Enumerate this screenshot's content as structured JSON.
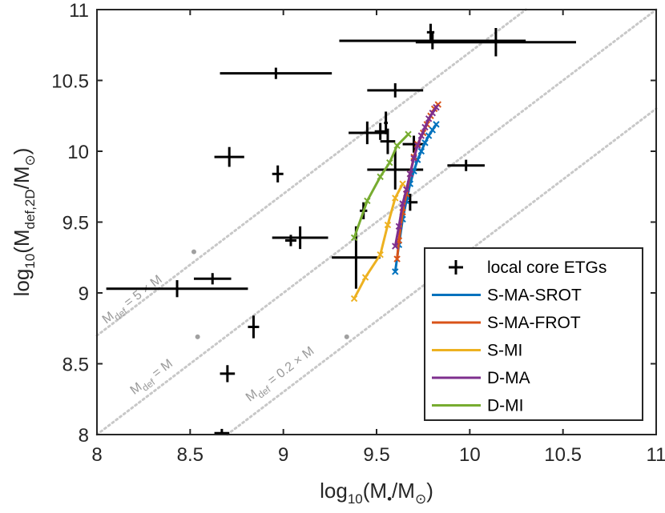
{
  "chart_data": {
    "type": "scatter",
    "xlim": [
      8,
      11
    ],
    "ylim": [
      8,
      11
    ],
    "xticks": [
      8,
      8.5,
      9,
      9.5,
      10,
      10.5,
      11
    ],
    "xtick_labels": [
      "8",
      "8.5",
      "9",
      "9.5",
      "10",
      "10.5",
      "11"
    ],
    "yticks": [
      8,
      8.5,
      9,
      9.5,
      10,
      10.5,
      11
    ],
    "ytick_labels": [
      "8",
      "8.5",
      "9",
      "9.5",
      "10",
      "10.5",
      "11"
    ],
    "xlabel": {
      "pre": "log",
      "sub1": "10",
      "mid": "(M",
      "sub2": "•",
      "post": "/M",
      "sun": "⊙",
      "end": ")"
    },
    "ylabel": {
      "pre": "log",
      "sub1": "10",
      "mid": "(M",
      "sub2": "def,2D",
      "post": "/M",
      "sun": "⊙",
      "end": ")"
    },
    "grid": false,
    "legend_position": "bottom-right",
    "reference_lines": [
      {
        "name": "5x",
        "offset": 0.69897,
        "color": "#c8c8c8",
        "label": {
          "m": "M",
          "sub": "def",
          "text": " = 5 × M",
          "x": 8.05,
          "y": 8.78
        }
      },
      {
        "name": "1x",
        "offset": 0.0,
        "color": "#c8c8c8",
        "label": {
          "m": "M",
          "sub": "def",
          "text": " = M",
          "x": 8.2,
          "y": 8.28
        }
      },
      {
        "name": "0.2x",
        "offset": -0.69897,
        "color": "#c8c8c8",
        "label": {
          "m": "M",
          "sub": "def",
          "text": " = 0.2 × M",
          "x": 8.82,
          "y": 8.23
        }
      }
    ],
    "reference_dots": [
      {
        "x": 8.52,
        "y": 9.29
      },
      {
        "x": 8.54,
        "y": 8.69
      },
      {
        "x": 9.34,
        "y": 8.69
      }
    ],
    "observations": {
      "name": "local core ETGs",
      "points": [
        {
          "x": 9.8,
          "y": 10.78,
          "xerr": 0.5,
          "yerr": 0.06
        },
        {
          "x": 10.14,
          "y": 10.77,
          "xerr": 0.43,
          "yerr": 0.1
        },
        {
          "x": 9.79,
          "y": 10.84,
          "xerr": 0.02,
          "yerr": 0.06
        },
        {
          "x": 8.96,
          "y": 10.55,
          "xerr": 0.3,
          "yerr": 0.04
        },
        {
          "x": 9.6,
          "y": 10.43,
          "xerr": 0.15,
          "yerr": 0.05
        },
        {
          "x": 9.55,
          "y": 10.2,
          "xerr": 0.01,
          "yerr": 0.08
        },
        {
          "x": 9.45,
          "y": 10.13,
          "xerr": 0.1,
          "yerr": 0.08
        },
        {
          "x": 9.52,
          "y": 10.14,
          "xerr": 0.03,
          "yerr": 0.06
        },
        {
          "x": 9.56,
          "y": 10.07,
          "xerr": 0.04,
          "yerr": 0.09
        },
        {
          "x": 9.7,
          "y": 10.05,
          "xerr": 0.06,
          "yerr": 0.06
        },
        {
          "x": 9.6,
          "y": 9.87,
          "xerr": 0.15,
          "yerr": 0.14
        },
        {
          "x": 9.98,
          "y": 9.9,
          "xerr": 0.1,
          "yerr": 0.04
        },
        {
          "x": 8.71,
          "y": 9.96,
          "xerr": 0.08,
          "yerr": 0.07
        },
        {
          "x": 8.97,
          "y": 9.84,
          "xerr": 0.03,
          "yerr": 0.06
        },
        {
          "x": 9.68,
          "y": 9.64,
          "xerr": 0.04,
          "yerr": 0.06
        },
        {
          "x": 9.43,
          "y": 9.58,
          "xerr": 0.02,
          "yerr": 0.06
        },
        {
          "x": 9.09,
          "y": 9.39,
          "xerr": 0.15,
          "yerr": 0.08
        },
        {
          "x": 9.04,
          "y": 9.37,
          "xerr": 0.03,
          "yerr": 0.04
        },
        {
          "x": 9.39,
          "y": 9.25,
          "xerr": 0.13,
          "yerr": 0.22
        },
        {
          "x": 8.62,
          "y": 9.1,
          "xerr": 0.1,
          "yerr": 0.04
        },
        {
          "x": 8.43,
          "y": 9.03,
          "xerr": 0.38,
          "yerr": 0.06
        },
        {
          "x": 8.84,
          "y": 8.76,
          "xerr": 0.03,
          "yerr": 0.08
        },
        {
          "x": 8.7,
          "y": 8.43,
          "xerr": 0.04,
          "yerr": 0.06
        },
        {
          "x": 8.67,
          "y": 8.01,
          "xerr": 0.04,
          "yerr": 0.03
        }
      ]
    },
    "series": [
      {
        "name": "S-MA-SROT",
        "color": "#0072BD",
        "x": [
          9.6,
          9.62,
          9.64,
          9.66,
          9.68,
          9.7,
          9.72,
          9.74,
          9.76,
          9.78,
          9.8,
          9.82
        ],
        "y": [
          9.15,
          9.34,
          9.52,
          9.65,
          9.77,
          9.86,
          9.94,
          10.0,
          10.06,
          10.11,
          10.15,
          10.19
        ]
      },
      {
        "name": "S-MA-FROT",
        "color": "#D95319",
        "x": [
          9.61,
          9.62,
          9.64,
          9.66,
          9.68,
          9.7,
          9.72,
          9.75,
          9.77,
          9.79,
          9.81,
          9.83
        ],
        "y": [
          9.24,
          9.37,
          9.57,
          9.7,
          9.84,
          9.96,
          10.05,
          10.13,
          10.19,
          10.25,
          10.3,
          10.33
        ]
      },
      {
        "name": "S-MI",
        "color": "#EDB120",
        "x": [
          9.38,
          9.44,
          9.52,
          9.56,
          9.6,
          9.64
        ],
        "y": [
          8.96,
          9.11,
          9.27,
          9.48,
          9.67,
          9.77
        ]
      },
      {
        "name": "D-MA",
        "color": "#7E2F8E",
        "x": [
          9.6,
          9.62,
          9.64,
          9.66,
          9.68,
          9.7,
          9.72,
          9.74,
          9.76,
          9.78,
          9.8,
          9.82
        ],
        "y": [
          9.33,
          9.47,
          9.63,
          9.73,
          9.84,
          9.95,
          10.04,
          10.11,
          10.17,
          10.23,
          10.27,
          10.31
        ]
      },
      {
        "name": "D-MI",
        "color": "#77AC30",
        "x": [
          9.38,
          9.45,
          9.52,
          9.57,
          9.61,
          9.67
        ],
        "y": [
          9.39,
          9.65,
          9.82,
          9.92,
          10.04,
          10.12
        ]
      }
    ],
    "legend": [
      {
        "label": "local core ETGs",
        "marker": "plus",
        "color": "#000000"
      },
      {
        "label": "S-MA-SROT",
        "marker": "line",
        "color": "#0072BD"
      },
      {
        "label": "S-MA-FROT",
        "marker": "line",
        "color": "#D95319"
      },
      {
        "label": "S-MI",
        "marker": "line",
        "color": "#EDB120"
      },
      {
        "label": "D-MA",
        "marker": "line",
        "color": "#7E2F8E"
      },
      {
        "label": "D-MI",
        "marker": "line",
        "color": "#77AC30"
      }
    ]
  }
}
